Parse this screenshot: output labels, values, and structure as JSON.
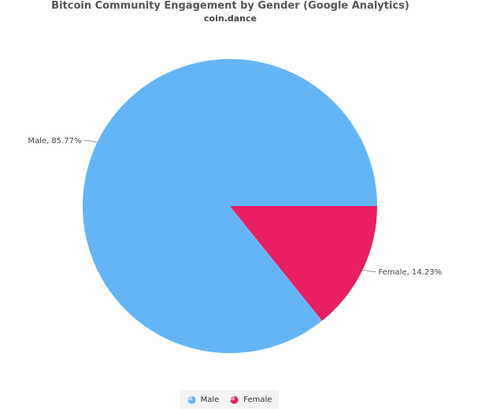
{
  "chart_data": {
    "type": "pie",
    "title": "Bitcoin Community Engagement by Gender (Google Analytics)",
    "subtitle": "coin.dance",
    "slices": [
      {
        "name": "Male",
        "value": 85.77,
        "label": "Male, 85.77%",
        "color": "#64b5f6"
      },
      {
        "name": "Female",
        "value": 14.23,
        "label": "Female, 14.23%",
        "color": "#e91e63"
      }
    ],
    "legend": {
      "placement": "bottom-center",
      "items": [
        "Male",
        "Female"
      ]
    }
  }
}
